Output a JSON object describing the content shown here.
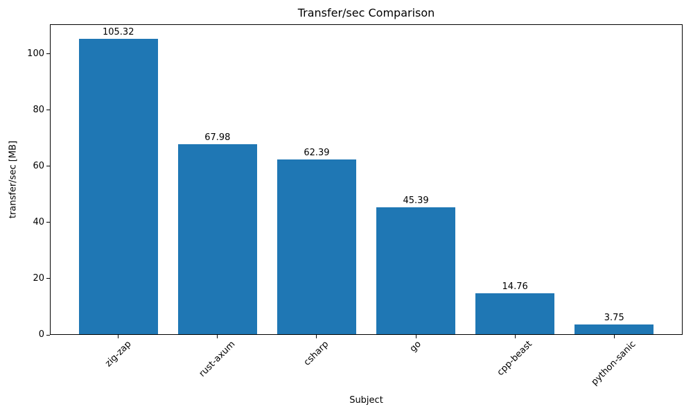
{
  "chart_data": {
    "type": "bar",
    "title": "Transfer/sec Comparison",
    "xlabel": "Subject",
    "ylabel": "transfer/sec [MB]",
    "categories": [
      "zig-zap",
      "rust-axum",
      "csharp",
      "go",
      "cpp-beast",
      "python-sanic"
    ],
    "values": [
      105.32,
      67.98,
      62.39,
      45.39,
      14.76,
      3.75
    ],
    "value_labels": [
      "105.32",
      "67.98",
      "62.39",
      "45.39",
      "14.76",
      "3.75"
    ],
    "bar_color": "#1f77b4",
    "ylim": [
      0,
      110.6
    ],
    "yticks": [
      0,
      20,
      40,
      60,
      80,
      100
    ],
    "x_tick_rotation": 45,
    "grid": false,
    "legend": "none"
  }
}
